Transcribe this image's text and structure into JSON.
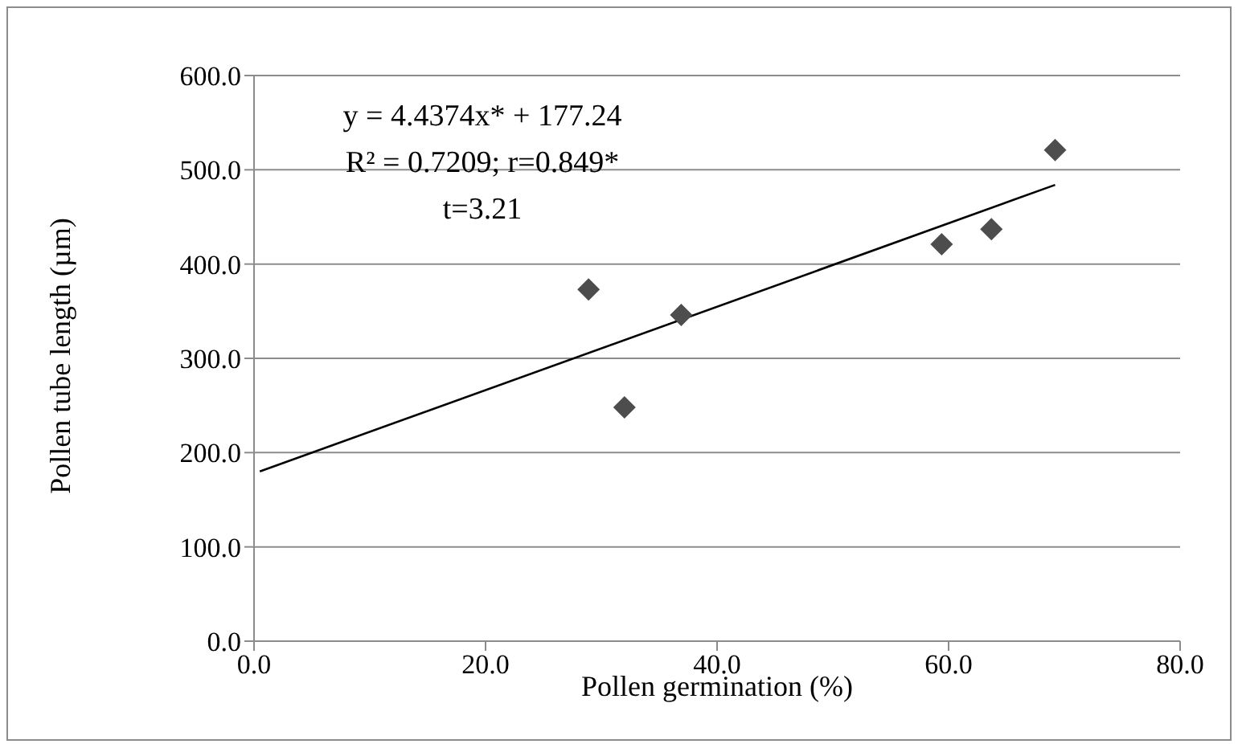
{
  "chart_data": {
    "type": "scatter",
    "xlabel": "Pollen germination (%)",
    "ylabel": "Pollen tube length (µm)",
    "annotations": [
      "y = 4.4374x* + 177.24",
      "R² = 0.7209; r=0.849*",
      "t=3.21"
    ],
    "series": [
      {
        "color": "#4d4d4d",
        "x": [
          28.9,
          32.0,
          36.9,
          59.4,
          63.7,
          69.2
        ],
        "values": [
          373,
          248,
          346,
          421,
          437,
          521
        ],
        "marker": "diamond"
      },
      {
        "type": "line",
        "color": "#000000",
        "x": [
          0.5,
          69.2
        ],
        "values": [
          180,
          484
        ],
        "marker": "none"
      }
    ],
    "xlim": [
      0,
      80
    ],
    "xticks": [
      {
        "value": 0,
        "label": "0.0"
      },
      {
        "value": 20,
        "label": "20.0"
      },
      {
        "value": 40,
        "label": "40.0"
      },
      {
        "value": 60,
        "label": "60.0"
      },
      {
        "value": 80,
        "label": "80.0"
      }
    ],
    "ylim": [
      0,
      600
    ],
    "yticks": [
      {
        "value": 0,
        "label": "0.0"
      },
      {
        "value": 100,
        "label": "100.0"
      },
      {
        "value": 200,
        "label": "200.0"
      },
      {
        "value": 300,
        "label": "300.0"
      },
      {
        "value": 400,
        "label": "400.0"
      },
      {
        "value": 500,
        "label": "500.0"
      },
      {
        "value": 600,
        "label": "600.0"
      }
    ],
    "grid": "y",
    "legend": false
  }
}
